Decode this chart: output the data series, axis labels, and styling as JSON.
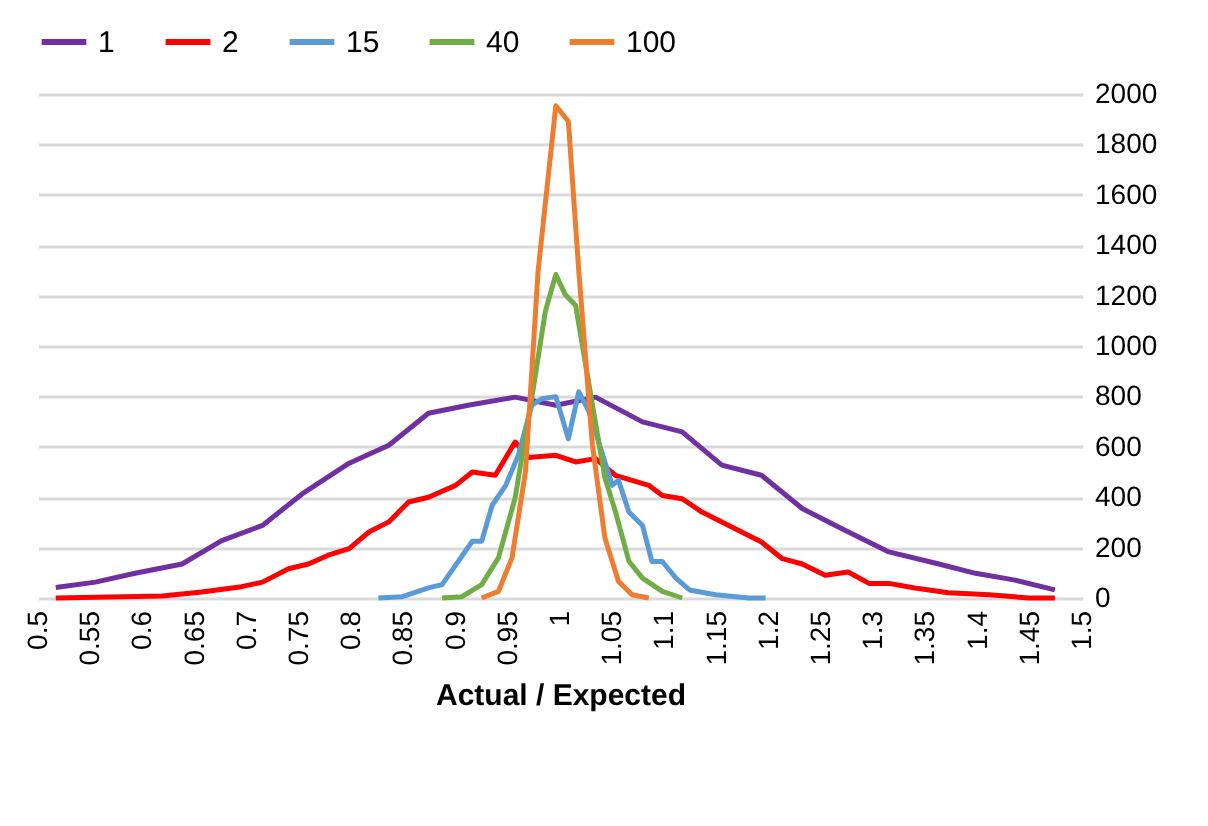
{
  "chart_data": {
    "type": "line",
    "xlabel": "Actual / Expected",
    "xlim": [
      0.5,
      1.5
    ],
    "ylim": [
      0,
      2000
    ],
    "xticks": [
      0.5,
      0.55,
      0.6,
      0.65,
      0.7,
      0.75,
      0.8,
      0.85,
      0.9,
      0.95,
      1,
      1.05,
      1.1,
      1.15,
      1.2,
      1.25,
      1.3,
      1.35,
      1.4,
      1.45,
      1.5
    ],
    "yticks": [
      0,
      200,
      400,
      600,
      800,
      1000,
      1200,
      1400,
      1600,
      1800,
      2000
    ],
    "grid": "y",
    "legend": "top",
    "marker": "none",
    "line_style": "solid",
    "series": [
      {
        "name": "1",
        "color": "#7030a0",
        "x": [
          0.517,
          0.555,
          0.593,
          0.638,
          0.676,
          0.715,
          0.753,
          0.798,
          0.836,
          0.874,
          0.912,
          0.957,
          0.996,
          1.034,
          1.079,
          1.117,
          1.155,
          1.193,
          1.232,
          1.27,
          1.315,
          1.36,
          1.398,
          1.436,
          1.474
        ],
        "values": [
          42,
          63,
          98,
          135,
          228,
          288,
          413,
          535,
          606,
          733,
          765,
          797,
          765,
          797,
          699,
          659,
          527,
          487,
          355,
          275,
          183,
          138,
          98,
          71,
          32
        ]
      },
      {
        "name": "2",
        "color": "#ff0000",
        "x": [
          0.517,
          0.619,
          0.657,
          0.695,
          0.715,
          0.74,
          0.759,
          0.778,
          0.798,
          0.817,
          0.836,
          0.855,
          0.874,
          0.9,
          0.916,
          0.938,
          0.957,
          0.97,
          0.996,
          1.015,
          1.034,
          1.053,
          1.085,
          1.098,
          1.117,
          1.136,
          1.155,
          1.174,
          1.193,
          1.213,
          1.232,
          1.254,
          1.276,
          1.296,
          1.315,
          1.34,
          1.372,
          1.411,
          1.449,
          1.474
        ],
        "values": [
          0,
          8,
          24,
          45,
          63,
          116,
          135,
          170,
          196,
          262,
          302,
          381,
          400,
          447,
          500,
          487,
          619,
          558,
          566,
          540,
          553,
          487,
          447,
          407,
          394,
          341,
          302,
          262,
          222,
          156,
          135,
          90,
          103,
          58,
          58,
          40,
          21,
          13,
          0,
          0
        ]
      },
      {
        "name": "15",
        "color": "#5b9bd5",
        "x": [
          0.826,
          0.849,
          0.874,
          0.887,
          0.916,
          0.925,
          0.935,
          0.948,
          0.96,
          0.973,
          0.983,
          0.996,
          1.008,
          1.018,
          1.028,
          1.037,
          1.05,
          1.056,
          1.066,
          1.079,
          1.088,
          1.098,
          1.111,
          1.124,
          1.149,
          1.181,
          1.197
        ],
        "values": [
          0,
          5,
          40,
          53,
          225,
          225,
          368,
          447,
          566,
          765,
          791,
          799,
          632,
          818,
          738,
          619,
          447,
          467,
          341,
          288,
          145,
          145,
          79,
          32,
          13,
          0,
          0
        ]
      },
      {
        "name": "40",
        "color": "#70ad47",
        "x": [
          0.887,
          0.906,
          0.925,
          0.941,
          0.957,
          0.973,
          0.986,
          0.996,
          1.005,
          1.015,
          1.031,
          1.043,
          1.053,
          1.066,
          1.079,
          1.098,
          1.117
        ],
        "values": [
          0,
          5,
          53,
          159,
          397,
          794,
          1138,
          1284,
          1204,
          1161,
          768,
          477,
          344,
          146,
          79,
          26,
          0
        ]
      },
      {
        "name": "100",
        "color": "#ed7d31",
        "x": [
          0.925,
          0.941,
          0.954,
          0.967,
          0.979,
          0.996,
          1.008,
          1.018,
          1.031,
          1.043,
          1.056,
          1.069,
          1.085
        ],
        "values": [
          0,
          26,
          159,
          503,
          1297,
          1953,
          1892,
          1297,
          609,
          238,
          66,
          13,
          0
        ]
      }
    ]
  }
}
